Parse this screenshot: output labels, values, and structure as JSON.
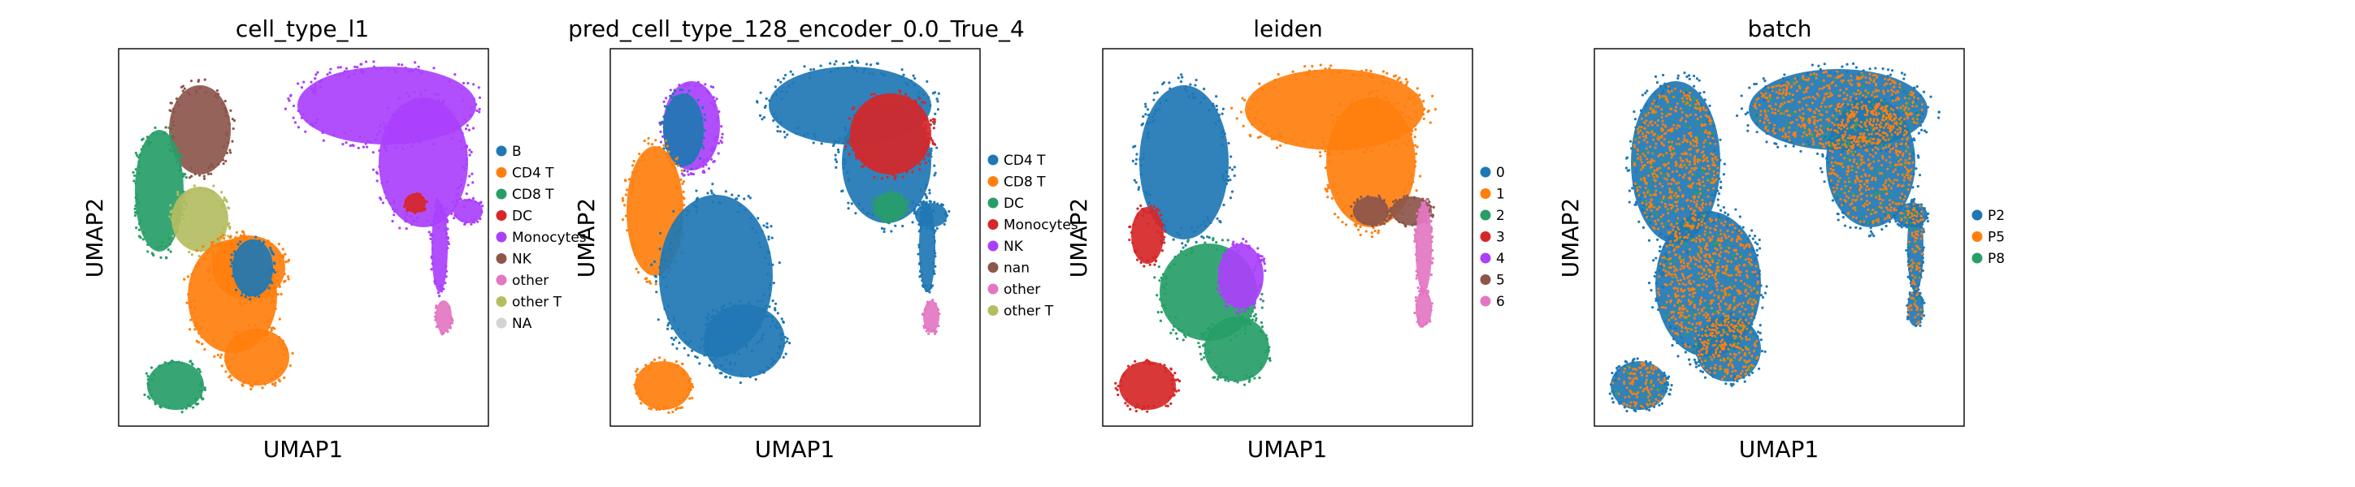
{
  "figure": {
    "background": "#ffffff"
  },
  "chart_data": [
    {
      "type": "scatter",
      "title": "cell_type_l1",
      "xlabel": "UMAP1",
      "ylabel": "UMAP2",
      "ticks": "none",
      "legend_placement": "right",
      "legend": [
        {
          "label": "B",
          "color": "#1f77b4"
        },
        {
          "label": "CD4 T",
          "color": "#ff7f0e"
        },
        {
          "label": "CD8 T",
          "color": "#279e68"
        },
        {
          "label": "DC",
          "color": "#d62728"
        },
        {
          "label": "Monocytes",
          "color": "#aa40fc"
        },
        {
          "label": "NK",
          "color": "#8c564b"
        },
        {
          "label": "other",
          "color": "#e377c2"
        },
        {
          "label": "other T",
          "color": "#b5bd61"
        },
        {
          "label": "NA",
          "color": "#d3d3d3"
        }
      ]
    },
    {
      "type": "scatter",
      "title": "pred_cell_type_128_encoder_0.0_True_4",
      "xlabel": "UMAP1",
      "ylabel": "UMAP2",
      "ticks": "none",
      "legend_placement": "right",
      "legend": [
        {
          "label": "CD4 T",
          "color": "#1f77b4"
        },
        {
          "label": "CD8 T",
          "color": "#ff7f0e"
        },
        {
          "label": "DC",
          "color": "#279e68"
        },
        {
          "label": "Monocytes",
          "color": "#d62728"
        },
        {
          "label": "NK",
          "color": "#aa40fc"
        },
        {
          "label": "nan",
          "color": "#8c564b"
        },
        {
          "label": "other",
          "color": "#e377c2"
        },
        {
          "label": "other T",
          "color": "#b5bd61"
        }
      ]
    },
    {
      "type": "scatter",
      "title": "leiden",
      "xlabel": "UMAP1",
      "ylabel": "UMAP2",
      "ticks": "none",
      "legend_placement": "right",
      "legend": [
        {
          "label": "0",
          "color": "#1f77b4"
        },
        {
          "label": "1",
          "color": "#ff7f0e"
        },
        {
          "label": "2",
          "color": "#279e68"
        },
        {
          "label": "3",
          "color": "#d62728"
        },
        {
          "label": "4",
          "color": "#aa40fc"
        },
        {
          "label": "5",
          "color": "#8c564b"
        },
        {
          "label": "6",
          "color": "#e377c2"
        }
      ]
    },
    {
      "type": "scatter",
      "title": "batch",
      "xlabel": "UMAP1",
      "ylabel": "UMAP2",
      "ticks": "none",
      "legend_placement": "right",
      "legend": [
        {
          "label": "P2",
          "color": "#1f77b4"
        },
        {
          "label": "P5",
          "color": "#ff7f0e"
        },
        {
          "label": "P8",
          "color": "#279e68"
        }
      ]
    }
  ]
}
